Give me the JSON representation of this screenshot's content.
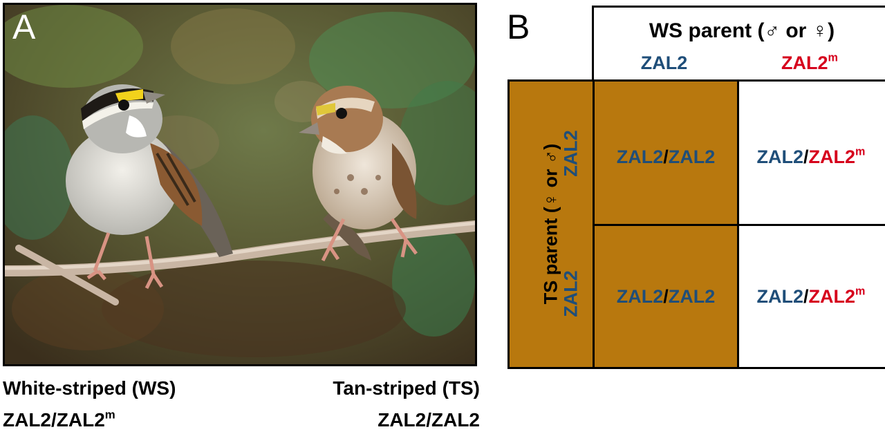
{
  "panel_a": {
    "letter": "A",
    "photo": "white-throated-sparrows-photo",
    "caption_ws_title": "White-striped (WS)",
    "caption_ws_genotype_base": "ZAL2/ZAL2",
    "caption_ws_genotype_sup": "m",
    "caption_ts_title": "Tan-striped (TS)",
    "caption_ts_genotype": "ZAL2/ZAL2"
  },
  "panel_b": {
    "letter": "B",
    "ws_parent_header": "WS parent (♂ or ♀)",
    "ws_allele_1": "ZAL2",
    "ws_allele_2_base": "ZAL2",
    "ws_allele_2_sup": "m",
    "ts_parent_header": "TS parent (♀ or ♂)",
    "ts_allele_1": "ZAL2",
    "ts_allele_2": "ZAL2",
    "grid": [
      {
        "left": "ZAL2",
        "sep": "/",
        "right": "ZAL2",
        "right_sup": ""
      },
      {
        "left": "ZAL2",
        "sep": "/",
        "right": "ZAL2",
        "right_sup": "m"
      },
      {
        "left": "ZAL2",
        "sep": "/",
        "right": "ZAL2",
        "right_sup": ""
      },
      {
        "left": "ZAL2",
        "sep": "/",
        "right": "ZAL2",
        "right_sup": "m"
      }
    ],
    "colors": {
      "tan_fill": "#b8780e",
      "allele_blue": "#1f4e79",
      "allele_red": "#d6001c"
    }
  }
}
